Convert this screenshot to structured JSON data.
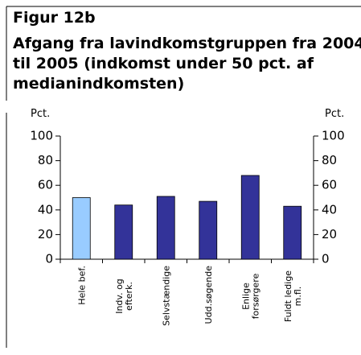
{
  "chart_data": {
    "type": "bar",
    "label": "Figur 12b",
    "title": [
      "Afgang fra lavindkomstgruppen fra 2004",
      "til 2005 (indkomst under 50 pct. af",
      "medianindkomsten)"
    ],
    "ylabel": "Pct.",
    "y2label": "Pct.",
    "categories": [
      [
        "Hele bef."
      ],
      [
        "Indv. og",
        "efterk."
      ],
      [
        "Selvstændige"
      ],
      [
        "Udd.søgende"
      ],
      [
        "Enlige",
        "forsørgere"
      ],
      [
        "Fuldt ledige",
        "m.fl."
      ]
    ],
    "values": [
      50,
      44,
      51,
      47,
      68,
      43
    ],
    "colors": [
      "#99ccff",
      "#333399",
      "#333399",
      "#333399",
      "#333399",
      "#333399"
    ],
    "ylim": [
      0,
      100
    ],
    "yticks": [
      0,
      20,
      40,
      60,
      80,
      100
    ],
    "y2lim": [
      0,
      100
    ],
    "y2ticks": [
      0,
      20,
      40,
      60,
      80,
      100
    ]
  }
}
